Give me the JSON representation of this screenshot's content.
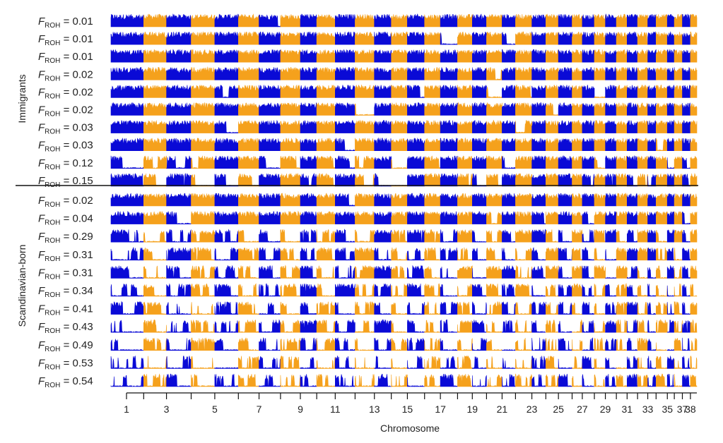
{
  "chart_data": {
    "type": "area",
    "xlabel": "Chromosome",
    "chromosomes": [
      1,
      2,
      3,
      4,
      5,
      6,
      7,
      8,
      9,
      10,
      11,
      12,
      13,
      14,
      15,
      16,
      17,
      18,
      19,
      20,
      21,
      22,
      23,
      24,
      25,
      26,
      27,
      28,
      29,
      30,
      31,
      32,
      33,
      34,
      35,
      36,
      37,
      38
    ],
    "tick_labels": [
      "1",
      "3",
      "5",
      "7",
      "9",
      "11",
      "13",
      "15",
      "17",
      "19",
      "21",
      "23",
      "25",
      "27",
      "29",
      "31",
      "33",
      "35",
      "37",
      "38"
    ],
    "chromosome_colors": [
      "#0a0ad6",
      "#f5a11c"
    ],
    "groups": [
      {
        "name": "Immigrants",
        "individuals": [
          {
            "label_prefix": "F",
            "label_sub": "ROH",
            "label_value": " = 0.01",
            "f_roh": 0.01
          },
          {
            "label_prefix": "F",
            "label_sub": "ROH",
            "label_value": " = 0.01",
            "f_roh": 0.01
          },
          {
            "label_prefix": "F",
            "label_sub": "ROH",
            "label_value": " = 0.01",
            "f_roh": 0.01
          },
          {
            "label_prefix": "F",
            "label_sub": "ROH",
            "label_value": " = 0.02",
            "f_roh": 0.02
          },
          {
            "label_prefix": "F",
            "label_sub": "ROH",
            "label_value": " = 0.02",
            "f_roh": 0.02
          },
          {
            "label_prefix": "F",
            "label_sub": "ROH",
            "label_value": " = 0.02",
            "f_roh": 0.02
          },
          {
            "label_prefix": "F",
            "label_sub": "ROH",
            "label_value": " = 0.03",
            "f_roh": 0.03
          },
          {
            "label_prefix": "F",
            "label_sub": "ROH",
            "label_value": " = 0.03",
            "f_roh": 0.03
          },
          {
            "label_prefix": "F",
            "label_sub": "ROH",
            "label_value": " = 0.12",
            "f_roh": 0.12
          },
          {
            "label_prefix": "F",
            "label_sub": "ROH",
            "label_value": " = 0.15",
            "f_roh": 0.15
          }
        ]
      },
      {
        "name": "Scandinavian-born",
        "individuals": [
          {
            "label_prefix": "F",
            "label_sub": "ROH",
            "label_value": " = 0.02",
            "f_roh": 0.02
          },
          {
            "label_prefix": "F",
            "label_sub": "ROH",
            "label_value": " = 0.04",
            "f_roh": 0.04
          },
          {
            "label_prefix": "F",
            "label_sub": "ROH",
            "label_value": " = 0.29",
            "f_roh": 0.29
          },
          {
            "label_prefix": "F",
            "label_sub": "ROH",
            "label_value": " = 0.31",
            "f_roh": 0.31
          },
          {
            "label_prefix": "F",
            "label_sub": "ROH",
            "label_value": " = 0.31",
            "f_roh": 0.31
          },
          {
            "label_prefix": "F",
            "label_sub": "ROH",
            "label_value": " = 0.34",
            "f_roh": 0.34
          },
          {
            "label_prefix": "F",
            "label_sub": "ROH",
            "label_value": " = 0.41",
            "f_roh": 0.41
          },
          {
            "label_prefix": "F",
            "label_sub": "ROH",
            "label_value": " = 0.43",
            "f_roh": 0.43
          },
          {
            "label_prefix": "F",
            "label_sub": "ROH",
            "label_value": " = 0.49",
            "f_roh": 0.49
          },
          {
            "label_prefix": "F",
            "label_sub": "ROH",
            "label_value": " = 0.53",
            "f_roh": 0.53
          },
          {
            "label_prefix": "F",
            "label_sub": "ROH",
            "label_value": " = 0.54",
            "f_roh": 0.54
          }
        ]
      }
    ]
  }
}
